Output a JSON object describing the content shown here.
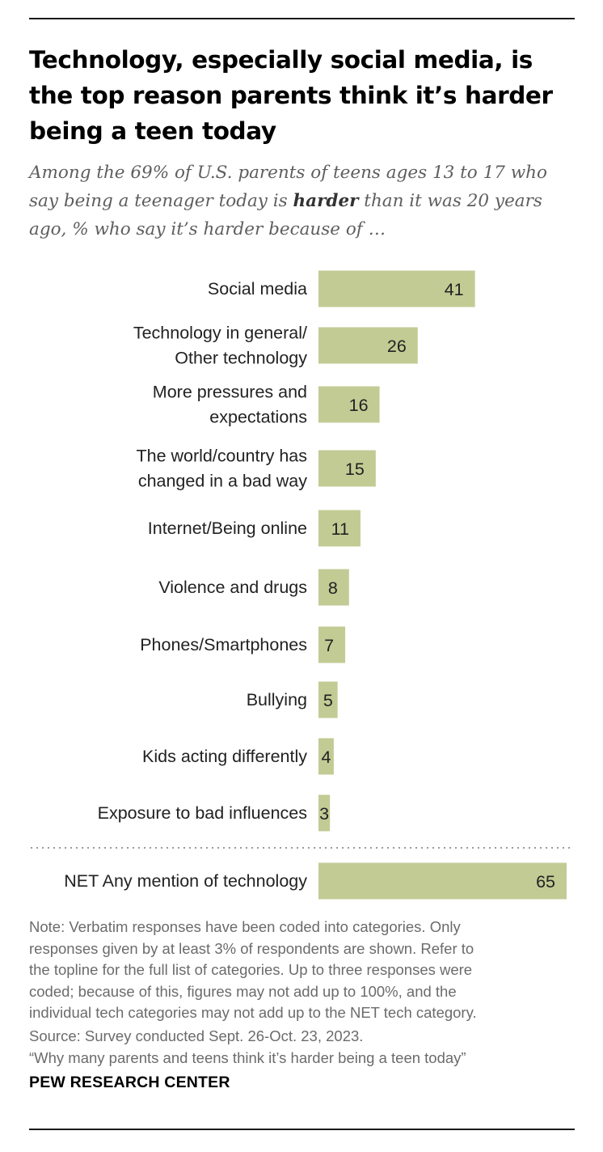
{
  "title": "Technology, especially social media, is the top reason parents think it’s harder being a teen today",
  "subtitle": {
    "before": "Among the 69% of U.S. parents of teens ages 13 to 17 who say being a teenager today is ",
    "emphasis": "harder",
    "after": " than it was 20 years ago, % who say it’s harder because of …"
  },
  "colors": {
    "bar": "#c2cb94",
    "divider": "#9a9a9a",
    "rule": "#1a1a1a"
  },
  "chart_data": {
    "type": "bar",
    "orientation": "horizontal",
    "categories": [
      [
        "Social media"
      ],
      [
        "Technology in general/",
        "Other technology"
      ],
      [
        "More pressures and",
        "expectations"
      ],
      [
        "The world/country has",
        "changed in a bad way"
      ],
      [
        "Internet/Being online"
      ],
      [
        "Violence and drugs"
      ],
      [
        "Phones/Smartphones"
      ],
      [
        "Bullying"
      ],
      [
        "Kids acting differently"
      ],
      [
        "Exposure to bad influences"
      ]
    ],
    "values": [
      41,
      26,
      16,
      15,
      11,
      8,
      7,
      5,
      4,
      3
    ],
    "net": {
      "label": "NET Any mention of technology",
      "value": 65
    },
    "xlim": [
      0,
      65
    ],
    "grid": false,
    "legend": "none"
  },
  "note": [
    "Note: Verbatim responses have been coded into categories. Only",
    "responses given by at least 3% of respondents are shown. Refer to",
    "the topline for the full list of categories. Up to three responses were",
    "coded; because of this, figures may not add up to 100%, and the",
    "individual tech categories may not add up to the NET tech category."
  ],
  "source": [
    "Source: Survey conducted Sept. 26-Oct. 23, 2023.",
    "“Why many parents and teens think it’s harder being a teen today”"
  ],
  "brand": "PEW RESEARCH CENTER"
}
